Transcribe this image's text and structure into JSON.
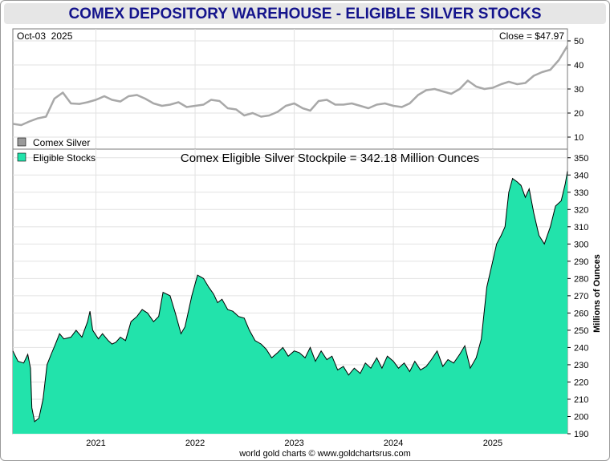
{
  "title": "COMEX DEPOSITORY WAREHOUSE - ELIGIBLE SILVER STOCKS",
  "footer": "world gold charts © www.goldchartsrus.com",
  "colors": {
    "silver_line": "#a8a8a8",
    "stocks_fill": "#22e3ab",
    "stocks_line": "#000000",
    "grid": "#e2e2e2",
    "title": "#14148c"
  },
  "chart_data": [
    {
      "type": "line",
      "panel": "top",
      "date_label": "Oct-03  2025",
      "close_label": "Close = $47.97",
      "legend": [
        {
          "label": "Comex Silver",
          "color": "#9a9a9a"
        }
      ],
      "ylim": [
        5,
        55
      ],
      "yticks": [
        10,
        20,
        30,
        40,
        50
      ],
      "series": [
        {
          "name": "Comex Silver",
          "x": [
            "2020-03-01",
            "2020-04-01",
            "2020-05-01",
            "2020-06-01",
            "2020-07-01",
            "2020-08-01",
            "2020-09-01",
            "2020-10-01",
            "2020-11-01",
            "2020-12-01",
            "2021-01-01",
            "2021-02-01",
            "2021-03-01",
            "2021-04-01",
            "2021-05-01",
            "2021-06-01",
            "2021-07-01",
            "2021-08-01",
            "2021-09-01",
            "2021-10-01",
            "2021-11-01",
            "2021-12-01",
            "2022-01-01",
            "2022-02-01",
            "2022-03-01",
            "2022-04-01",
            "2022-05-01",
            "2022-06-01",
            "2022-07-01",
            "2022-08-01",
            "2022-09-01",
            "2022-10-01",
            "2022-11-01",
            "2022-12-01",
            "2023-01-01",
            "2023-02-01",
            "2023-03-01",
            "2023-04-01",
            "2023-05-01",
            "2023-06-01",
            "2023-07-01",
            "2023-08-01",
            "2023-09-01",
            "2023-10-01",
            "2023-11-01",
            "2023-12-01",
            "2024-01-01",
            "2024-02-01",
            "2024-03-01",
            "2024-04-01",
            "2024-05-01",
            "2024-06-01",
            "2024-07-01",
            "2024-08-01",
            "2024-09-01",
            "2024-10-01",
            "2024-11-01",
            "2024-12-01",
            "2025-01-01",
            "2025-02-01",
            "2025-03-01",
            "2025-04-01",
            "2025-05-01",
            "2025-06-01",
            "2025-07-01",
            "2025-08-01",
            "2025-09-01",
            "2025-10-03"
          ],
          "y": [
            15.5,
            15.0,
            16.5,
            17.8,
            18.5,
            26.0,
            28.5,
            24.0,
            23.8,
            24.5,
            25.5,
            27.0,
            25.5,
            24.8,
            27.0,
            27.5,
            26.0,
            24.0,
            23.0,
            23.5,
            24.5,
            22.5,
            23.0,
            23.5,
            25.5,
            25.0,
            22.0,
            21.5,
            19.0,
            20.0,
            18.5,
            19.0,
            20.5,
            23.0,
            24.0,
            22.0,
            21.0,
            25.0,
            25.5,
            23.5,
            23.5,
            24.0,
            23.0,
            22.0,
            23.5,
            24.0,
            23.0,
            22.5,
            24.0,
            27.5,
            29.5,
            30.0,
            29.0,
            28.0,
            30.0,
            33.5,
            31.0,
            30.0,
            30.5,
            32.0,
            33.0,
            32.0,
            32.5,
            35.5,
            37.0,
            38.0,
            42.0,
            47.97
          ]
        }
      ]
    },
    {
      "type": "area",
      "panel": "bottom",
      "title": "Comex Eligible Silver Stockpile = 342.18 Million Ounces",
      "ylabel": "Millions of Ounces",
      "legend": [
        {
          "label": "Eligible Stocks",
          "color": "#22e3ab"
        }
      ],
      "ylim": [
        190,
        355
      ],
      "yticks": [
        190,
        200,
        210,
        220,
        230,
        240,
        250,
        260,
        270,
        280,
        290,
        300,
        310,
        320,
        330,
        340,
        350
      ],
      "xticks": [
        {
          "label": "2021",
          "x": "2021-01-01"
        },
        {
          "label": "2022",
          "x": "2022-01-01"
        },
        {
          "label": "2023",
          "x": "2023-01-01"
        },
        {
          "label": "2024",
          "x": "2024-01-01"
        },
        {
          "label": "2025",
          "x": "2025-01-01"
        }
      ],
      "xlim": [
        "2020-03-01",
        "2025-10-03"
      ],
      "series": [
        {
          "name": "Eligible Stocks",
          "x": [
            "2020-03-01",
            "2020-03-20",
            "2020-04-10",
            "2020-04-25",
            "2020-05-05",
            "2020-05-10",
            "2020-05-20",
            "2020-06-05",
            "2020-06-20",
            "2020-07-05",
            "2020-07-20",
            "2020-08-05",
            "2020-08-20",
            "2020-09-05",
            "2020-10-01",
            "2020-10-20",
            "2020-11-10",
            "2020-12-01",
            "2020-12-10",
            "2020-12-20",
            "2021-01-10",
            "2021-01-25",
            "2021-02-15",
            "2021-03-01",
            "2021-03-15",
            "2021-04-01",
            "2021-04-20",
            "2021-05-10",
            "2021-06-01",
            "2021-06-20",
            "2021-07-10",
            "2021-08-01",
            "2021-08-20",
            "2021-09-05",
            "2021-10-01",
            "2021-10-20",
            "2021-11-10",
            "2021-11-25",
            "2021-12-20",
            "2022-01-10",
            "2022-02-01",
            "2022-02-20",
            "2022-03-10",
            "2022-03-25",
            "2022-04-10",
            "2022-05-01",
            "2022-05-20",
            "2022-06-10",
            "2022-07-01",
            "2022-07-20",
            "2022-08-10",
            "2022-09-01",
            "2022-09-20",
            "2022-10-10",
            "2022-11-01",
            "2022-11-20",
            "2022-12-10",
            "2023-01-01",
            "2023-01-20",
            "2023-02-10",
            "2023-03-01",
            "2023-03-20",
            "2023-04-10",
            "2023-05-01",
            "2023-05-20",
            "2023-06-10",
            "2023-07-01",
            "2023-07-20",
            "2023-08-10",
            "2023-09-01",
            "2023-09-20",
            "2023-10-10",
            "2023-11-01",
            "2023-11-20",
            "2023-12-10",
            "2024-01-01",
            "2024-01-20",
            "2024-02-10",
            "2024-03-01",
            "2024-03-20",
            "2024-04-10",
            "2024-05-01",
            "2024-05-20",
            "2024-06-10",
            "2024-07-01",
            "2024-07-20",
            "2024-08-10",
            "2024-09-01",
            "2024-09-20",
            "2024-10-10",
            "2024-11-01",
            "2024-11-20",
            "2024-12-10",
            "2025-01-01",
            "2025-01-15",
            "2025-02-01",
            "2025-02-15",
            "2025-03-01",
            "2025-03-15",
            "2025-04-01",
            "2025-04-15",
            "2025-05-01",
            "2025-05-15",
            "2025-06-01",
            "2025-06-20",
            "2025-07-10",
            "2025-08-01",
            "2025-08-20",
            "2025-09-10",
            "2025-09-25",
            "2025-10-03"
          ],
          "y": [
            238,
            232,
            231,
            236,
            228,
            205,
            197,
            199,
            210,
            230,
            236,
            242,
            248,
            245,
            246,
            250,
            246,
            255,
            261,
            250,
            245,
            248,
            244,
            242,
            243,
            246,
            244,
            255,
            258,
            262,
            260,
            255,
            258,
            272,
            270,
            260,
            248,
            252,
            270,
            282,
            280,
            275,
            271,
            266,
            268,
            262,
            261,
            258,
            257,
            250,
            244,
            242,
            239,
            234,
            237,
            240,
            235,
            238,
            237,
            234,
            240,
            232,
            238,
            233,
            235,
            227,
            229,
            224,
            228,
            225,
            231,
            228,
            234,
            228,
            235,
            232,
            228,
            231,
            226,
            232,
            227,
            229,
            233,
            238,
            229,
            233,
            231,
            236,
            241,
            228,
            234,
            245,
            275,
            290,
            300,
            305,
            310,
            330,
            338,
            336,
            334,
            327,
            332,
            318,
            305,
            300,
            310,
            322,
            325,
            335,
            342.18
          ]
        }
      ]
    }
  ]
}
